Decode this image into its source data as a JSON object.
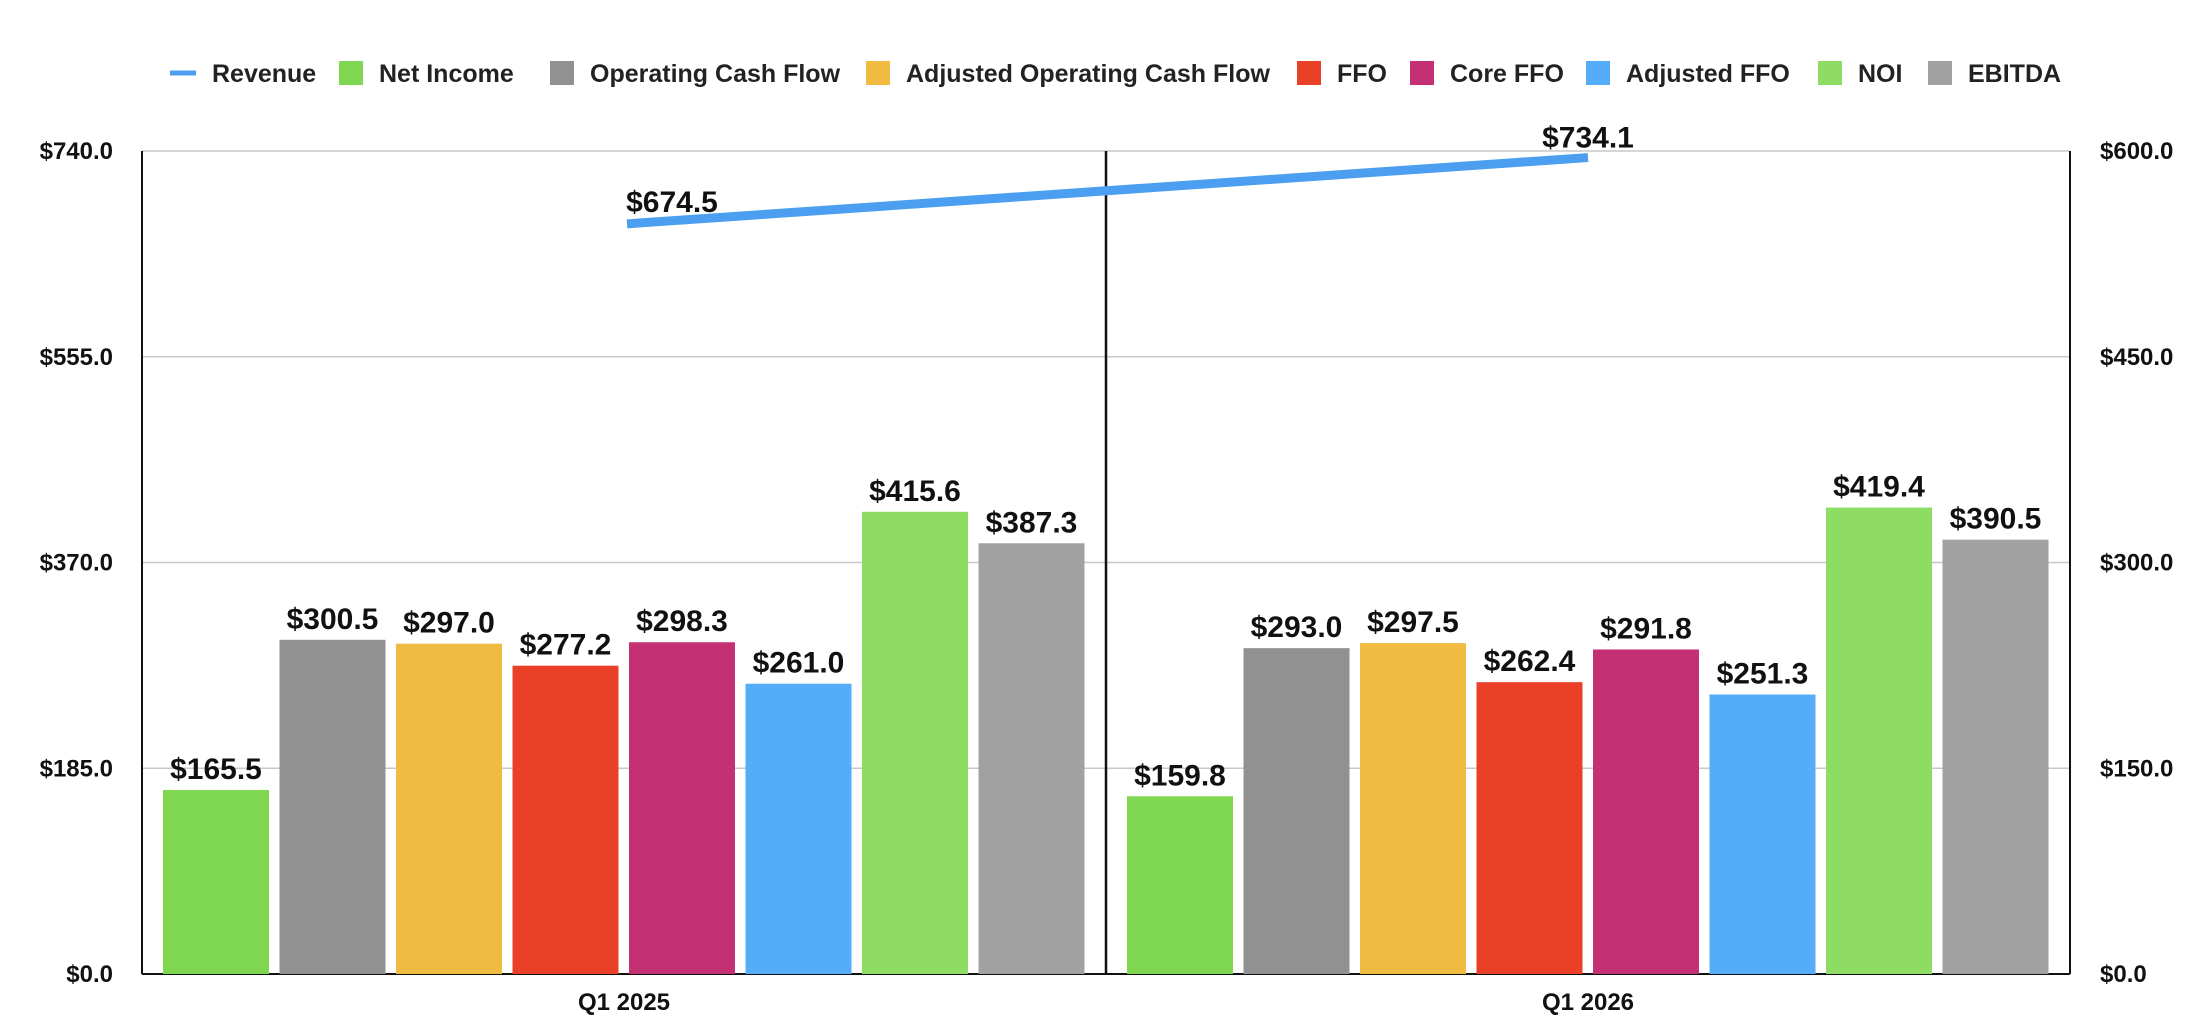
{
  "chart_data": {
    "type": "bar",
    "categories": [
      "Q1 2025",
      "Q1 2026"
    ],
    "y_left": {
      "min": 0,
      "max": 740,
      "ticks": [
        "$0.0",
        "$185.0",
        "$370.0",
        "$555.0",
        "$740.0"
      ]
    },
    "y_right": {
      "min": 0,
      "max": 600,
      "ticks": [
        "$0.0",
        "$150.0",
        "$300.0",
        "$450.0",
        "$600.0"
      ]
    },
    "grid": true,
    "legend_position": "top",
    "line_series": {
      "name": "Revenue",
      "axis": "left",
      "color": "#4C9FF0",
      "values": [
        674.5,
        734.1
      ],
      "labels": [
        "$674.5",
        "$734.1"
      ]
    },
    "series": [
      {
        "name": "Net Income",
        "color": "#7FD651",
        "values": [
          165.5,
          159.8
        ],
        "labels": [
          "$165.5",
          "$159.8"
        ]
      },
      {
        "name": "Operating Cash Flow",
        "color": "#919191",
        "values": [
          300.5,
          293.0
        ],
        "labels": [
          "$300.5",
          "$293.0"
        ]
      },
      {
        "name": "Adjusted Operating Cash Flow",
        "color": "#EFBB40",
        "values": [
          297.0,
          297.5
        ],
        "labels": [
          "$297.0",
          "$297.5"
        ]
      },
      {
        "name": "FFO",
        "color": "#EA4027",
        "values": [
          277.2,
          262.4
        ],
        "labels": [
          "$277.2",
          "$262.4"
        ]
      },
      {
        "name": "Core FFO",
        "color": "#C33074",
        "values": [
          298.3,
          291.8
        ],
        "labels": [
          "$298.3",
          "$291.8"
        ]
      },
      {
        "name": "Adjusted FFO",
        "color": "#55ACF9",
        "values": [
          261.0,
          251.3
        ],
        "labels": [
          "$261.0",
          "$251.3"
        ]
      },
      {
        "name": "NOI",
        "color": "#8EDC63",
        "values": [
          415.6,
          419.4
        ],
        "labels": [
          "$415.6",
          "$419.4"
        ]
      },
      {
        "name": "EBITDA",
        "color": "#A1A1A1",
        "values": [
          387.3,
          390.5
        ],
        "labels": [
          "$387.3",
          "$390.5"
        ]
      }
    ]
  }
}
